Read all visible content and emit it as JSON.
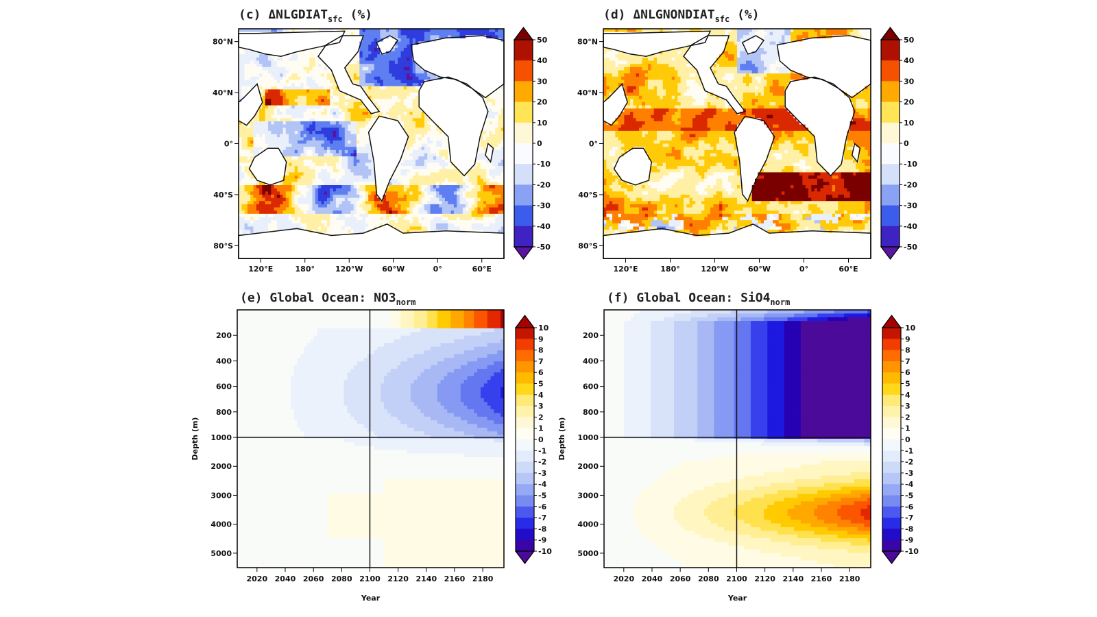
{
  "panels": [
    {
      "id": "c",
      "title_prefix": "(c) ΔNLGDIAT",
      "title_sub": "sfc",
      "title_suffix": " (%)",
      "chart_data": {
        "type": "heatmap",
        "map": "global-ocean-surface",
        "lat_ticks": [
          "80°N",
          "40°N",
          "0°",
          "40°S",
          "80°S"
        ],
        "lon_ticks": [
          "120°E",
          "180°",
          "120°W",
          "60°W",
          "0°",
          "60°E"
        ],
        "colorbar": {
          "min": -50,
          "max": 50,
          "step": 10,
          "labels": [
            "50",
            "40",
            "30",
            "20",
            "10",
            "0",
            "-10",
            "-20",
            "-30",
            "-40",
            "-50"
          ]
        },
        "pattern": "mixed: strong decreases (blue/purple) in North Atlantic and tropical Pacific; increases (red) in Southern Ocean bands and subtropics"
      }
    },
    {
      "id": "d",
      "title_prefix": "(d) ΔNLGNONDIAT",
      "title_sub": "sfc",
      "title_suffix": " (%)",
      "chart_data": {
        "type": "heatmap",
        "map": "global-ocean-surface",
        "lat_ticks": [
          "80°N",
          "40°N",
          "0°",
          "40°S",
          "80°S"
        ],
        "lon_ticks": [
          "120°E",
          "180°",
          "120°W",
          "60°W",
          "0°",
          "60°E"
        ],
        "colorbar": {
          "min": -50,
          "max": 50,
          "step": 10,
          "labels": [
            "50",
            "40",
            "30",
            "20",
            "10",
            "0",
            "-10",
            "-20",
            "-30",
            "-40",
            "-50"
          ]
        },
        "pattern": "predominantly increases (yellow to dark red) across most ocean basins; small decreases in North Atlantic and Southern Ocean patches"
      }
    },
    {
      "id": "e",
      "title_prefix": "(e) Global Ocean: NO3",
      "title_sub": "norm",
      "title_suffix": "",
      "chart_data": {
        "type": "heatmap",
        "x_label": "Year",
        "y_label": "Depth (m)",
        "x_ticks": [
          "2020",
          "2040",
          "2060",
          "2080",
          "2100",
          "2120",
          "2140",
          "2160",
          "2180"
        ],
        "x_range": [
          2006,
          2195
        ],
        "y_ticks_upper": [
          "200",
          "400",
          "600",
          "800",
          "1000"
        ],
        "y_ticks_lower": [
          "2000",
          "3000",
          "4000",
          "5000"
        ],
        "y_split": 1000,
        "y_range": [
          0,
          5500
        ],
        "reference_year": 2100,
        "colorbar": {
          "min": -10,
          "max": 10,
          "step": 1,
          "labels": [
            "10",
            "9",
            "8",
            "7",
            "6",
            "5",
            "4",
            "3",
            "2",
            "1",
            "0",
            "-1",
            "-2",
            "-3",
            "-4",
            "-5",
            "-6",
            "-7",
            "-8",
            "-9",
            "-10"
          ]
        },
        "pattern": "surface (0-150 m) positive up to +10 after 2140; intermediate 200-1000 m negative -2 to -5 late century; deep ocean slightly positive 0 to +1"
      }
    },
    {
      "id": "f",
      "title_prefix": "(f) Global Ocean: SiO4",
      "title_sub": "norm",
      "title_suffix": "",
      "chart_data": {
        "type": "heatmap",
        "x_label": "Year",
        "y_label": "Depth (m)",
        "x_ticks": [
          "2020",
          "2040",
          "2060",
          "2080",
          "2100",
          "2120",
          "2140",
          "2160",
          "2180"
        ],
        "x_range": [
          2006,
          2195
        ],
        "y_ticks_upper": [
          "200",
          "400",
          "600",
          "800",
          "1000"
        ],
        "y_ticks_lower": [
          "2000",
          "3000",
          "4000",
          "5000"
        ],
        "y_split": 1000,
        "y_range": [
          0,
          5500
        ],
        "reference_year": 2100,
        "colorbar": {
          "min": -10,
          "max": 10,
          "step": 1,
          "labels": [
            "10",
            "9",
            "8",
            "7",
            "6",
            "5",
            "4",
            "3",
            "2",
            "1",
            "0",
            "-1",
            "-2",
            "-3",
            "-4",
            "-5",
            "-6",
            "-7",
            "-8",
            "-9",
            "-10"
          ]
        },
        "pattern": "upper 1000 m strongly negative reaching -10 after 2100; deep ocean positive rising to +5 to +6 near 3000-4500 m by 2180"
      }
    }
  ],
  "colors": {
    "map_diverging": [
      "#5a14a0",
      "#3a24c8",
      "#2a46e8",
      "#4a6ef0",
      "#7d98f2",
      "#aebff6",
      "#d6e2fa",
      "#eef4fd",
      "#ffffff",
      "#fffbe6",
      "#fff3b8",
      "#ffe65a",
      "#ffc800",
      "#ffa000",
      "#ff6a00",
      "#e83200",
      "#b81400",
      "#7a0000"
    ],
    "depth_diverging": [
      "#4b0a9a",
      "#2400b4",
      "#1c1ce6",
      "#3c46ee",
      "#6e82f0",
      "#8ea2f4",
      "#b2c2f6",
      "#cad8f8",
      "#e2ebfb",
      "#f3f8fd",
      "#fffef2",
      "#fff8d4",
      "#fff2a6",
      "#ffe770",
      "#ffd400",
      "#ffb000",
      "#ff8a00",
      "#ff5a00",
      "#e62a00",
      "#a80000"
    ]
  }
}
